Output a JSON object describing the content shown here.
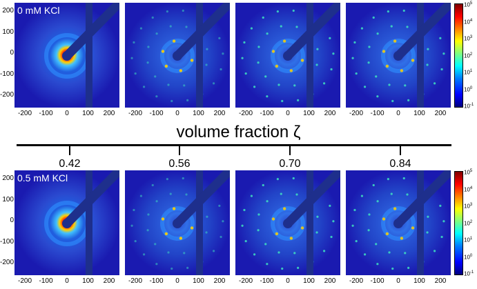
{
  "top_row": {
    "condition": "0 mM KCl"
  },
  "bottom_row": {
    "condition": "0.5 mM KCl"
  },
  "axis_title": "volume fraction ζ",
  "volume_fractions": [
    "0.42",
    "0.56",
    "0.70",
    "0.84"
  ],
  "y_ticks": [
    "200",
    "100",
    "0",
    "-100",
    "-200"
  ],
  "x_ticks": [
    "-200",
    "-100",
    "0",
    "100",
    "200"
  ],
  "colorbar_exponents": [
    "5",
    "4",
    "3",
    "2",
    "1",
    "0",
    "-1"
  ],
  "colorbar_base": "10",
  "colors": {
    "background": "#1a1ab0",
    "beamstop": "#1e2f8c",
    "ring": "#2f8fff",
    "peak": "#ffd000"
  }
}
